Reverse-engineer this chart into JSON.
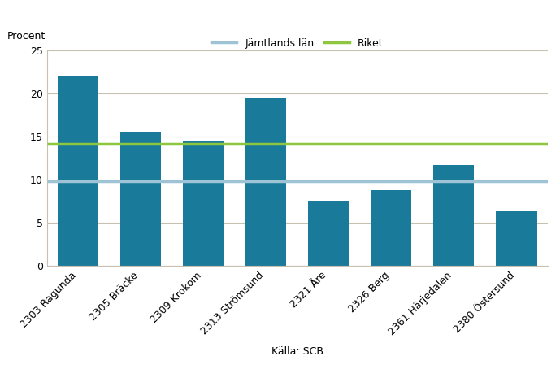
{
  "categories": [
    "2303 Ragunda",
    "2305 Bräcke",
    "2309 Krokom",
    "2313 Strömsund",
    "2321 Åre",
    "2326 Berg",
    "2361 Härjedalen",
    "2380 Östersund"
  ],
  "values": [
    22.1,
    15.6,
    14.5,
    19.5,
    7.6,
    8.8,
    11.7,
    6.4
  ],
  "bar_color": "#1A7A9A",
  "jamtlands_lan_value": 9.8,
  "riket_value": 14.2,
  "jamtlands_lan_color": "#9DC3D4",
  "riket_color": "#8DC63F",
  "jamtlands_lan_label": "Jämtlands län",
  "riket_label": "Riket",
  "procent_label": "Procent",
  "xlabel": "Källa: SCB",
  "ylim": [
    0,
    25
  ],
  "yticks": [
    0,
    5,
    10,
    15,
    20,
    25
  ],
  "background_color": "#FFFFFF",
  "plot_bg_color": "#FFFFFF",
  "grid_color": "#C8C0B0",
  "spine_color": "#C8C0B0",
  "label_fontsize": 9,
  "legend_fontsize": 9,
  "tick_fontsize": 9
}
